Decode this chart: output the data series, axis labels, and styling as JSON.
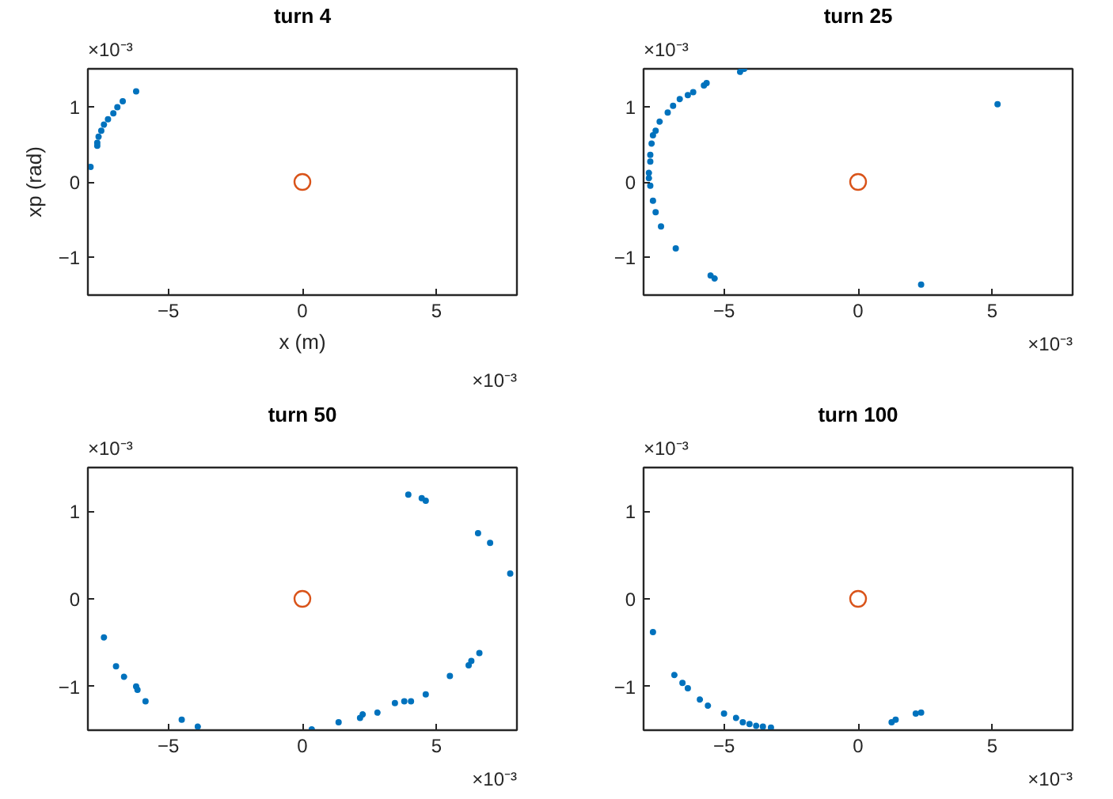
{
  "chart_data": [
    {
      "type": "scatter",
      "title": "turn 4",
      "xlabel": "x (m)",
      "ylabel": "xp (rad)",
      "annotations": [
        "×10⁻³",
        "×10⁻³"
      ],
      "xlim": [
        -8,
        8
      ],
      "ylim": [
        -1.5,
        1.5
      ],
      "xticks": [
        -5,
        0,
        5
      ],
      "yticks": [
        -1,
        0,
        1
      ],
      "series": [
        {
          "color": "#0072bd",
          "marker": "point",
          "x": [
            -6.2,
            -6.7,
            -6.9,
            -7.05,
            -7.25,
            -7.4,
            -7.5,
            -7.6,
            -7.65,
            -7.65,
            -7.9
          ],
          "values": [
            1.2,
            1.07,
            0.99,
            0.91,
            0.83,
            0.76,
            0.68,
            0.6,
            0.52,
            0.48,
            0.2
          ]
        },
        {
          "color": "#d95319",
          "marker": "circle",
          "x": [
            0
          ],
          "values": [
            0
          ]
        }
      ]
    },
    {
      "type": "scatter",
      "title": "turn 25",
      "annotations": [
        "×10⁻³",
        "×10⁻³"
      ],
      "xlim": [
        -8,
        8
      ],
      "ylim": [
        -1.5,
        1.5
      ],
      "xticks": [
        -5,
        0,
        5
      ],
      "yticks": [
        -1,
        0,
        1
      ],
      "series": [
        {
          "color": "#0072bd",
          "marker": "point",
          "x": [
            -4.25,
            -4.4,
            -5.65,
            -5.75,
            -6.15,
            -6.35,
            -6.65,
            -6.9,
            -7.1,
            -7.4,
            -7.55,
            -7.65,
            -7.7,
            -7.75,
            -7.75,
            -7.8,
            -7.8,
            -7.75,
            -7.65,
            -7.55,
            -7.35,
            -6.8,
            -5.5,
            -5.35,
            2.35,
            5.2
          ],
          "values": [
            1.5,
            1.46,
            1.31,
            1.28,
            1.19,
            1.15,
            1.1,
            1.01,
            0.92,
            0.8,
            0.68,
            0.62,
            0.51,
            0.36,
            0.27,
            0.12,
            0.05,
            -0.05,
            -0.25,
            -0.4,
            -0.59,
            -0.88,
            -1.24,
            -1.28,
            -1.36,
            1.03
          ]
        },
        {
          "color": "#d95319",
          "marker": "circle",
          "x": [
            0
          ],
          "values": [
            0
          ]
        }
      ]
    },
    {
      "type": "scatter",
      "title": "turn 50",
      "annotations": [
        "×10⁻³",
        "×10⁻³"
      ],
      "xlim": [
        -8,
        8
      ],
      "ylim": [
        -1.5,
        1.5
      ],
      "xticks": [
        -5,
        0,
        5
      ],
      "yticks": [
        -1,
        0,
        1
      ],
      "series": [
        {
          "color": "#0072bd",
          "marker": "point",
          "x": [
            3.95,
            4.45,
            4.6,
            6.55,
            7.0,
            7.75,
            6.6,
            6.3,
            6.2,
            5.5,
            4.6,
            4.05,
            3.8,
            3.45,
            2.8,
            2.25,
            2.15,
            1.35,
            0.35,
            -3.9,
            -4.5,
            -5.85,
            -6.15,
            -6.2,
            -6.65,
            -6.95,
            -7.4
          ],
          "values": [
            1.19,
            1.15,
            1.12,
            0.75,
            0.64,
            0.29,
            -0.62,
            -0.71,
            -0.76,
            -0.88,
            -1.09,
            -1.17,
            -1.17,
            -1.19,
            -1.3,
            -1.32,
            -1.36,
            -1.41,
            -1.49,
            -1.46,
            -1.38,
            -1.17,
            -1.04,
            -1.0,
            -0.89,
            -0.77,
            -0.44
          ]
        },
        {
          "color": "#d95319",
          "marker": "circle",
          "x": [
            0
          ],
          "values": [
            0
          ]
        }
      ]
    },
    {
      "type": "scatter",
      "title": "turn 100",
      "annotations": [
        "×10⁻³",
        "×10⁻³"
      ],
      "xlim": [
        -8,
        8
      ],
      "ylim": [
        -1.5,
        1.5
      ],
      "xticks": [
        -5,
        0,
        5
      ],
      "yticks": [
        -1,
        0,
        1
      ],
      "series": [
        {
          "color": "#0072bd",
          "marker": "point",
          "x": [
            -7.65,
            -6.85,
            -6.55,
            -6.35,
            -5.9,
            -5.6,
            -5.0,
            -4.55,
            -4.3,
            -4.05,
            -3.8,
            -3.55,
            -3.25,
            1.25,
            1.4,
            2.15,
            2.35
          ],
          "values": [
            -0.38,
            -0.87,
            -0.96,
            -1.02,
            -1.15,
            -1.22,
            -1.31,
            -1.36,
            -1.41,
            -1.43,
            -1.45,
            -1.46,
            -1.47,
            -1.41,
            -1.38,
            -1.31,
            -1.3
          ]
        },
        {
          "color": "#d95319",
          "marker": "circle",
          "x": [
            0
          ],
          "values": [
            0
          ]
        }
      ]
    }
  ]
}
